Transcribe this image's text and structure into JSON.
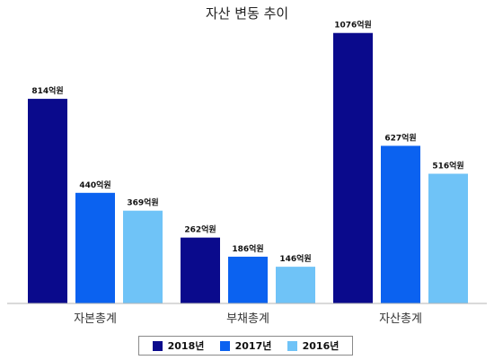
{
  "chart_data": {
    "type": "bar",
    "title": "자산 변동 추이",
    "categories": [
      "자본총계",
      "부채총계",
      "자산총계"
    ],
    "series": [
      {
        "name": "2018년",
        "color": "#0a0a8c",
        "values": [
          814,
          262,
          1076
        ],
        "labels": [
          "814억원",
          "262억원",
          "1076억원"
        ]
      },
      {
        "name": "2017년",
        "color": "#0b62f0",
        "values": [
          440,
          186,
          627
        ],
        "labels": [
          "440억원",
          "186억원",
          "627억원"
        ]
      },
      {
        "name": "2016년",
        "color": "#6fc3f7",
        "values": [
          369,
          146,
          516
        ],
        "labels": [
          "369억원",
          "146억원",
          "516억원"
        ]
      }
    ],
    "ylim": [
      0,
      1100
    ],
    "grid": false,
    "legend_position": "bottom"
  }
}
